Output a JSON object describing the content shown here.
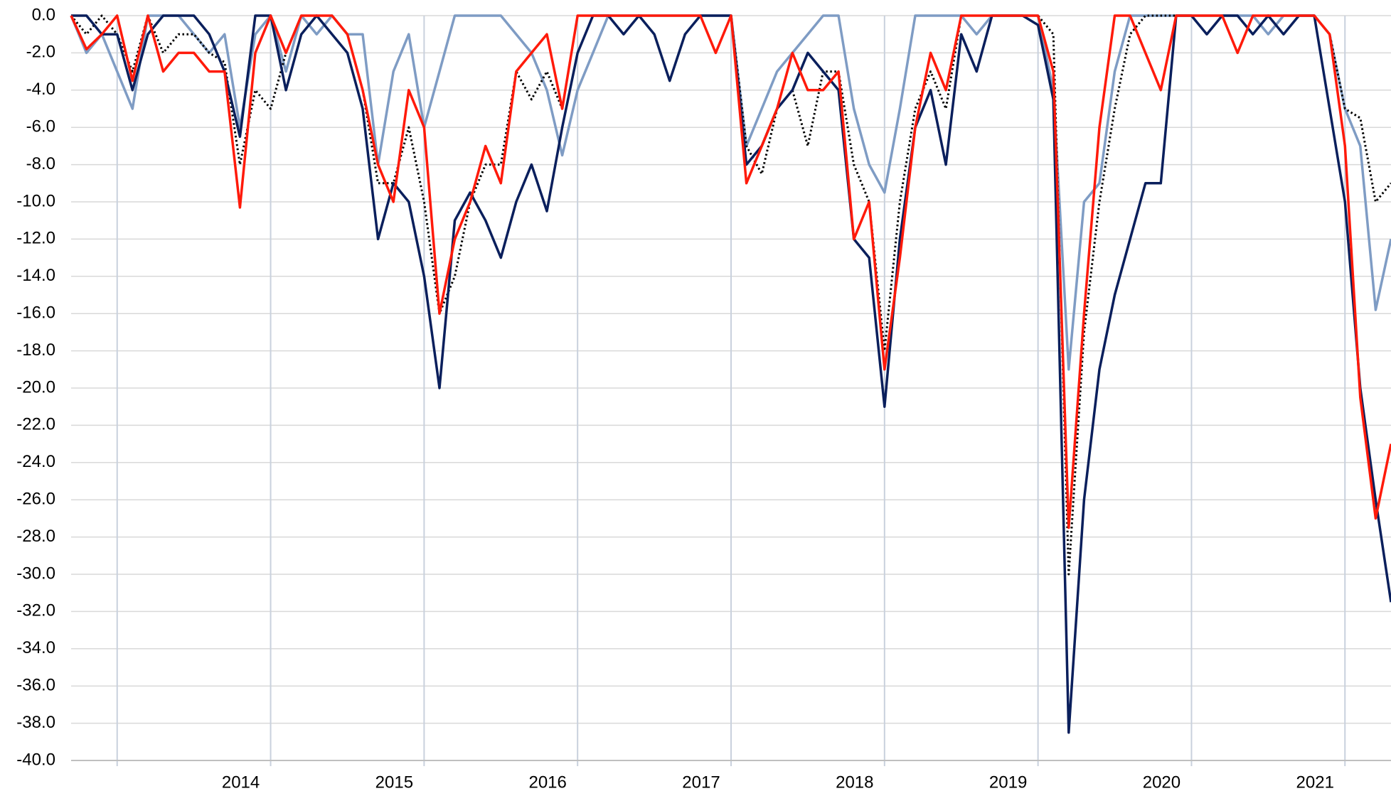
{
  "chart_data": {
    "type": "line",
    "x": [
      2012.7,
      2012.8,
      2012.9,
      2013.0,
      2013.1,
      2013.2,
      2013.3,
      2013.4,
      2013.5,
      2013.6,
      2013.7,
      2013.8,
      2013.9,
      2014.0,
      2014.1,
      2014.2,
      2014.3,
      2014.4,
      2014.5,
      2014.6,
      2014.7,
      2014.8,
      2014.9,
      2015.0,
      2015.1,
      2015.2,
      2015.3,
      2015.4,
      2015.5,
      2015.6,
      2015.7,
      2015.8,
      2015.9,
      2016.0,
      2016.1,
      2016.2,
      2016.3,
      2016.4,
      2016.5,
      2016.6,
      2016.7,
      2016.8,
      2016.9,
      2017.0,
      2017.1,
      2017.2,
      2017.3,
      2017.4,
      2017.5,
      2017.6,
      2017.7,
      2017.8,
      2017.9,
      2018.0,
      2018.1,
      2018.2,
      2018.3,
      2018.4,
      2018.5,
      2018.6,
      2018.7,
      2018.8,
      2018.9,
      2019.0,
      2019.1,
      2019.2,
      2019.3,
      2019.4,
      2019.5,
      2019.6,
      2019.7,
      2019.8,
      2019.9,
      2020.0,
      2020.1,
      2020.2,
      2020.3,
      2020.4,
      2020.5,
      2020.6,
      2020.7,
      2020.8,
      2020.9,
      2021.0,
      2021.1,
      2021.2,
      2021.3
    ],
    "series": [
      {
        "color": "#7f9cc4",
        "line_style": "solid",
        "values": [
          0,
          -2,
          -1,
          -3,
          -5,
          0,
          0,
          0,
          -1,
          -2,
          -1,
          -6,
          -1,
          0,
          -3,
          0,
          -1,
          0,
          -1,
          -1,
          -8,
          -3,
          -1,
          -6,
          -3,
          0,
          0,
          0,
          0,
          -1,
          -2,
          -4,
          -7.5,
          -4,
          -2,
          0,
          0,
          0,
          0,
          0,
          0,
          0,
          0,
          0,
          -7,
          -5,
          -3,
          -2,
          -1,
          0,
          0,
          -5,
          -8,
          -9.5,
          -5,
          0,
          0,
          0,
          0,
          -1,
          0,
          0,
          0,
          0,
          -4,
          -19,
          -10,
          -9,
          -3,
          0,
          0,
          0,
          0,
          0,
          0,
          0,
          0,
          0,
          -1,
          0,
          0,
          0,
          -1,
          -5,
          -7,
          -15.8,
          -12
        ]
      },
      {
        "color": "#000000",
        "line_style": "dotted",
        "values": [
          0,
          -1,
          0,
          -1,
          -3,
          0,
          -2,
          -1,
          -1,
          -2,
          -2.5,
          -8,
          -4,
          -5,
          -2,
          0,
          0,
          0,
          -1,
          -4,
          -9,
          -9,
          -6,
          -10,
          -16,
          -14,
          -10,
          -8,
          -8,
          -3,
          -4.5,
          -3,
          -5,
          0,
          0,
          0,
          0,
          0,
          0,
          0,
          0,
          0,
          0,
          0,
          -7,
          -8.5,
          -5,
          -4,
          -7,
          -3,
          -3,
          -8,
          -10,
          -18,
          -10,
          -5,
          -3,
          -5,
          0,
          0,
          0,
          0,
          0,
          0,
          -1,
          -30,
          -17,
          -10,
          -5,
          -1,
          0,
          0,
          0,
          0,
          -1,
          0,
          -2,
          0,
          0,
          0,
          0,
          0,
          -1,
          -5,
          -5.5,
          -10,
          -9
        ]
      },
      {
        "color": "#0a1f5c",
        "line_style": "solid",
        "values": [
          0,
          0,
          -1,
          -1,
          -4,
          -1,
          0,
          0,
          0,
          -1,
          -3,
          -6.5,
          0,
          0,
          -4,
          -1,
          0,
          -1,
          -2,
          -5,
          -12,
          -9,
          -10,
          -14,
          -20,
          -11,
          -9.5,
          -11,
          -13,
          -10,
          -8,
          -10.5,
          -6,
          -2,
          0,
          0,
          -1,
          0,
          -1,
          -3.5,
          -1,
          0,
          0,
          0,
          -8,
          -7,
          -5,
          -4,
          -2,
          -3,
          -4,
          -12,
          -13,
          -21,
          -12,
          -6,
          -4,
          -8,
          -1,
          -3,
          0,
          0,
          0,
          -0.5,
          -4.5,
          -38.5,
          -26,
          -19,
          -15,
          -12,
          -9,
          -9,
          0,
          0,
          -1,
          0,
          0,
          -1,
          0,
          -1,
          0,
          0,
          -5,
          -10,
          -20,
          -26,
          -31.5
        ]
      },
      {
        "color": "#ff1a0a",
        "line_style": "solid",
        "values": [
          0,
          -1.8,
          -1,
          0,
          -3.5,
          0,
          -3,
          -2,
          -2,
          -3,
          -3,
          -10.3,
          -2,
          0,
          -2,
          0,
          0,
          0,
          -1,
          -4,
          -8,
          -10,
          -4,
          -6,
          -16,
          -12,
          -10,
          -7,
          -9,
          -3,
          -2,
          -1,
          -5,
          0,
          0,
          0,
          0,
          0,
          0,
          0,
          0,
          0,
          -2,
          0,
          -9,
          -7,
          -5,
          -2,
          -4,
          -4,
          -3,
          -12,
          -10,
          -19,
          -13,
          -6,
          -2,
          -4,
          0,
          0,
          0,
          0,
          0,
          0,
          -3,
          -27.5,
          -16,
          -6,
          0,
          0,
          -2,
          -4,
          0,
          0,
          0,
          0,
          -2,
          0,
          0,
          0,
          0,
          0,
          -1,
          -7,
          -20.5,
          -27,
          -23
        ]
      }
    ],
    "xlim": [
      2012.7,
      2021.3
    ],
    "xgrid": [
      2013,
      2014,
      2015,
      2016,
      2017,
      2018,
      2019,
      2020,
      2021
    ],
    "xticks": [
      2014,
      2015,
      2016,
      2017,
      2018,
      2019,
      2020,
      2021
    ],
    "ylim": [
      -40,
      0
    ],
    "yticks": [
      {
        "value": 0,
        "label": "0.0"
      },
      {
        "value": -2,
        "label": "-2.0"
      },
      {
        "value": -4,
        "label": "-4.0"
      },
      {
        "value": -6,
        "label": "-6.0"
      },
      {
        "value": -8,
        "label": "-8.0"
      },
      {
        "value": -10,
        "label": "-10.0"
      },
      {
        "value": -12,
        "label": "-12.0"
      },
      {
        "value": -14,
        "label": "-14.0"
      },
      {
        "value": -16,
        "label": "-16.0"
      },
      {
        "value": -18,
        "label": "-18.0"
      },
      {
        "value": -20,
        "label": "-20.0"
      },
      {
        "value": -22,
        "label": "-22.0"
      },
      {
        "value": -24,
        "label": "-24.0"
      },
      {
        "value": -26,
        "label": "-26.0"
      },
      {
        "value": -28,
        "label": "-28.0"
      },
      {
        "value": -30,
        "label": "-30.0"
      },
      {
        "value": -32,
        "label": "-32.0"
      },
      {
        "value": -34,
        "label": "-34.0"
      },
      {
        "value": -36,
        "label": "-36.0"
      },
      {
        "value": -38,
        "label": "-38.0"
      },
      {
        "value": -40,
        "label": "-40.0"
      }
    ],
    "grid": true
  }
}
